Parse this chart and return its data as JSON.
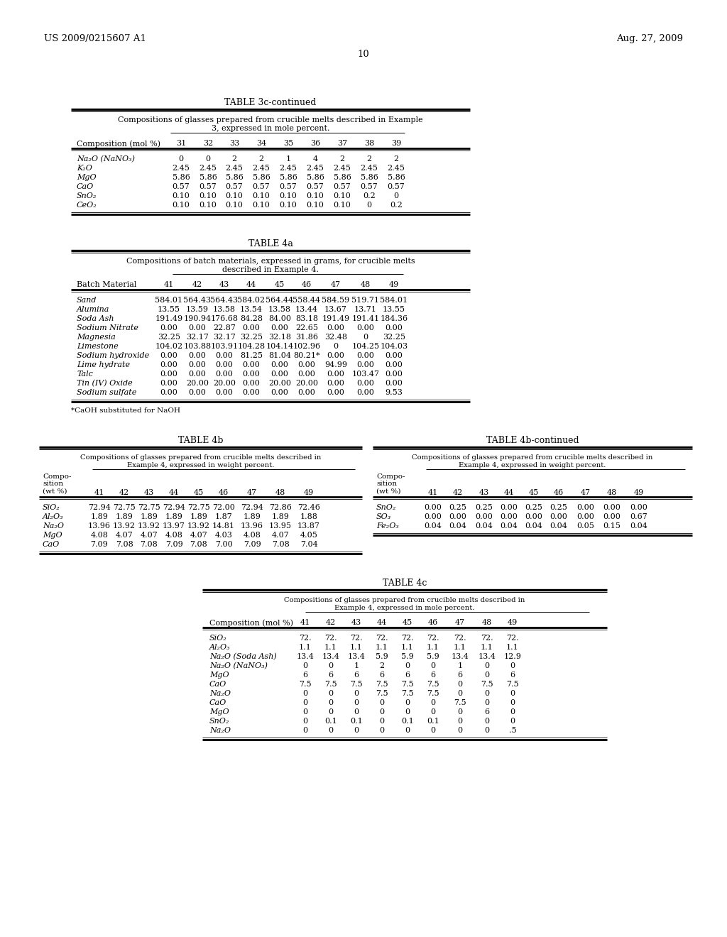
{
  "header_left": "US 2009/0215607 A1",
  "header_right": "Aug. 27, 2009",
  "page_number": "10",
  "bg_color": "#ffffff",
  "table3c_title": "TABLE 3c-continued",
  "table3c_subtitle1": "Compositions of glasses prepared from crucible melts described in Example",
  "table3c_subtitle2": "3, expressed in mole percent.",
  "table3c_col_header": [
    "Composition (mol %)",
    "31",
    "32",
    "33",
    "34",
    "35",
    "36",
    "37",
    "38",
    "39"
  ],
  "table3c_rows": [
    [
      "Na₂O (NaNO₃)",
      "0",
      "0",
      "2",
      "2",
      "1",
      "4",
      "2",
      "2",
      "2"
    ],
    [
      "K₂O",
      "2.45",
      "2.45",
      "2.45",
      "2.45",
      "2.45",
      "2.45",
      "2.45",
      "2.45",
      "2.45"
    ],
    [
      "MgO",
      "5.86",
      "5.86",
      "5.86",
      "5.86",
      "5.86",
      "5.86",
      "5.86",
      "5.86",
      "5.86"
    ],
    [
      "CaO",
      "0.57",
      "0.57",
      "0.57",
      "0.57",
      "0.57",
      "0.57",
      "0.57",
      "0.57",
      "0.57"
    ],
    [
      "SnO₂",
      "0.10",
      "0.10",
      "0.10",
      "0.10",
      "0.10",
      "0.10",
      "0.10",
      "0.2",
      "0"
    ],
    [
      "CeO₂",
      "0.10",
      "0.10",
      "0.10",
      "0.10",
      "0.10",
      "0.10",
      "0.10",
      "0",
      "0.2"
    ]
  ],
  "table4a_title": "TABLE 4a",
  "table4a_subtitle1": "Compositions of batch materials, expressed in grams, for crucible melts",
  "table4a_subtitle2": "described in Example 4.",
  "table4a_col_header": [
    "Batch Material",
    "41",
    "42",
    "43",
    "44",
    "45",
    "46",
    "47",
    "48",
    "49"
  ],
  "table4a_rows": [
    [
      "Sand",
      "584.01",
      "564.43",
      "564.43",
      "584.02",
      "564.44",
      "558.44",
      "584.59",
      "519.71",
      "584.01"
    ],
    [
      "Alumina",
      "13.55",
      "13.59",
      "13.58",
      "13.54",
      "13.58",
      "13.44",
      "13.67",
      "13.71",
      "13.55"
    ],
    [
      "Soda Ash",
      "191.49",
      "190.94",
      "176.68",
      "84.28",
      "84.00",
      "83.18",
      "191.49",
      "191.41",
      "184.36"
    ],
    [
      "Sodium Nitrate",
      "0.00",
      "0.00",
      "22.87",
      "0.00",
      "0.00",
      "22.65",
      "0.00",
      "0.00",
      "0.00"
    ],
    [
      "Magnesia",
      "32.25",
      "32.17",
      "32.17",
      "32.25",
      "32.18",
      "31.86",
      "32.48",
      "0",
      "32.25"
    ],
    [
      "Limestone",
      "104.02",
      "103.88",
      "103.91",
      "104.28",
      "104.14",
      "102.96",
      "0",
      "104.25",
      "104.03"
    ],
    [
      "Sodium hydroxide",
      "0.00",
      "0.00",
      "0.00",
      "81.25",
      "81.04",
      "80.21*",
      "0.00",
      "0.00",
      "0.00"
    ],
    [
      "Lime hydrate",
      "0.00",
      "0.00",
      "0.00",
      "0.00",
      "0.00",
      "0.00",
      "94.99",
      "0.00",
      "0.00"
    ],
    [
      "Talc",
      "0.00",
      "0.00",
      "0.00",
      "0.00",
      "0.00",
      "0.00",
      "0.00",
      "103.47",
      "0.00"
    ],
    [
      "Tin (IV) Oxide",
      "0.00",
      "20.00",
      "20.00",
      "0.00",
      "20.00",
      "20.00",
      "0.00",
      "0.00",
      "0.00"
    ],
    [
      "Sodium sulfate",
      "0.00",
      "0.00",
      "0.00",
      "0.00",
      "0.00",
      "0.00",
      "0.00",
      "0.00",
      "9.53"
    ]
  ],
  "table4a_footnote": "*CaOH substituted for NaOH",
  "table4b_title": "TABLE 4b",
  "table4b_subtitle1": "Compositions of glasses prepared from crucible melts described in",
  "table4b_subtitle2": "Example 4, expressed in weight percent.",
  "table4b_col_header": [
    "41",
    "42",
    "43",
    "44",
    "45",
    "46",
    "47",
    "48",
    "49"
  ],
  "table4b_rows": [
    [
      "SiO₂",
      "72.94",
      "72.75",
      "72.75",
      "72.94",
      "72.75",
      "72.00",
      "72.94",
      "72.86",
      "72.46"
    ],
    [
      "Al₂O₃",
      "1.89",
      "1.89",
      "1.89",
      "1.89",
      "1.89",
      "1.87",
      "1.89",
      "1.89",
      "1.88"
    ],
    [
      "Na₂O",
      "13.96",
      "13.92",
      "13.92",
      "13.97",
      "13.92",
      "14.81",
      "13.96",
      "13.95",
      "13.87"
    ],
    [
      "MgO",
      "4.08",
      "4.07",
      "4.07",
      "4.08",
      "4.07",
      "4.03",
      "4.08",
      "4.07",
      "4.05"
    ],
    [
      "CaO",
      "7.09",
      "7.08",
      "7.08",
      "7.09",
      "7.08",
      "7.00",
      "7.09",
      "7.08",
      "7.04"
    ]
  ],
  "table4b_cont_title": "TABLE 4b-continued",
  "table4b_cont_subtitle1": "Compositions of glasses prepared from crucible melts described in",
  "table4b_cont_subtitle2": "Example 4, expressed in weight percent.",
  "table4b_cont_col_header": [
    "41",
    "42",
    "43",
    "44",
    "45",
    "46",
    "47",
    "48",
    "49"
  ],
  "table4b_cont_rows": [
    [
      "SnO₂",
      "0.00",
      "0.25",
      "0.25",
      "0.00",
      "0.25",
      "0.25",
      "0.00",
      "0.00",
      "0.00"
    ],
    [
      "SO₃",
      "0.00",
      "0.00",
      "0.00",
      "0.00",
      "0.00",
      "0.00",
      "0.00",
      "0.00",
      "0.67"
    ],
    [
      "Fe₂O₃",
      "0.04",
      "0.04",
      "0.04",
      "0.04",
      "0.04",
      "0.04",
      "0.05",
      "0.15",
      "0.04"
    ]
  ],
  "table4c_title": "TABLE 4c",
  "table4c_subtitle1": "Compositions of glasses prepared from crucible melts described in",
  "table4c_subtitle2": "Example 4, expressed in mole percent.",
  "table4c_col_header": [
    "Composition (mol %)",
    "41",
    "42",
    "43",
    "44",
    "45",
    "46",
    "47",
    "48",
    "49"
  ],
  "table4c_rows": [
    [
      "SiO₂",
      "72.",
      "72.",
      "72.",
      "72.",
      "72.",
      "72.",
      "72.",
      "72.",
      "72."
    ],
    [
      "Al₂O₃",
      "1.1",
      "1.1",
      "1.1",
      "1.1",
      "1.1",
      "1.1",
      "1.1",
      "1.1",
      "1.1"
    ],
    [
      "Na₂O (Soda Ash)",
      "13.4",
      "13.4",
      "13.4",
      "5.9",
      "5.9",
      "5.9",
      "13.4",
      "13.4",
      "12.9"
    ],
    [
      "Na₂O (NaNO₃)",
      "0",
      "0",
      "1",
      "2",
      "0",
      "0",
      "1",
      "0",
      "0"
    ],
    [
      "MgO",
      "6",
      "6",
      "6",
      "6",
      "6",
      "6",
      "6",
      "0",
      "6"
    ],
    [
      "CaO",
      "7.5",
      "7.5",
      "7.5",
      "7.5",
      "7.5",
      "7.5",
      "0",
      "7.5",
      "7.5"
    ],
    [
      "Na₂O",
      "0",
      "0",
      "0",
      "7.5",
      "7.5",
      "7.5",
      "0",
      "0",
      "0"
    ],
    [
      "CaO",
      "0",
      "0",
      "0",
      "0",
      "0",
      "0",
      "7.5",
      "0",
      "0"
    ],
    [
      "MgO",
      "0",
      "0",
      "0",
      "0",
      "0",
      "0",
      "0",
      "6",
      "0"
    ],
    [
      "SnO₂",
      "0",
      "0.1",
      "0.1",
      "0",
      "0.1",
      "0.1",
      "0",
      "0",
      "0"
    ],
    [
      "Na₂O",
      "0",
      "0",
      "0",
      "0",
      "0",
      "0",
      "0",
      "0",
      ".5"
    ]
  ]
}
